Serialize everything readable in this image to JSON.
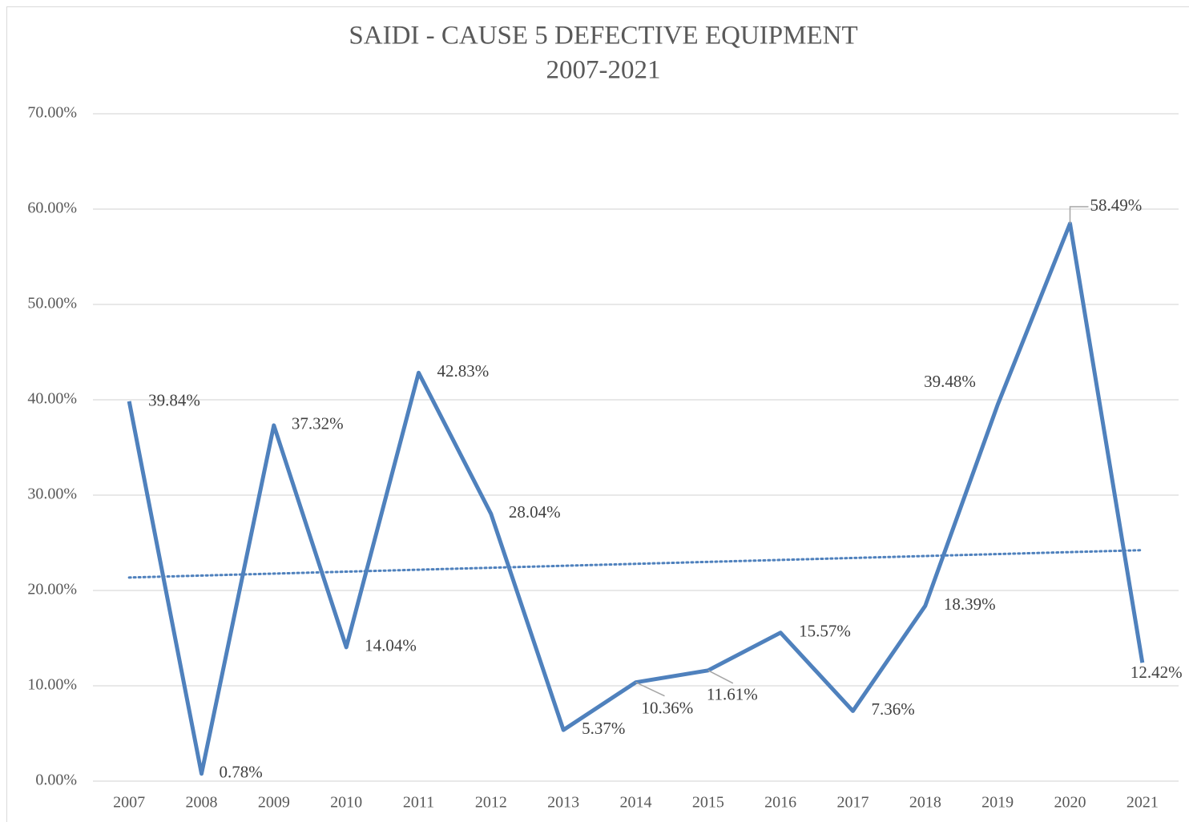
{
  "chart_data": {
    "type": "line",
    "title": "SAIDI - CAUSE 5 DEFECTIVE EQUIPMENT",
    "subtitle": "2007-2021",
    "categories": [
      "2007",
      "2008",
      "2009",
      "2010",
      "2011",
      "2012",
      "2013",
      "2014",
      "2015",
      "2016",
      "2017",
      "2018",
      "2019",
      "2020",
      "2021"
    ],
    "series": [
      {
        "name": "SAIDI - Cause 5",
        "color": "#4f81bd",
        "values": [
          39.84,
          0.78,
          37.32,
          14.04,
          42.83,
          28.04,
          5.37,
          10.36,
          11.61,
          15.57,
          7.36,
          18.39,
          39.48,
          58.49,
          12.42
        ],
        "value_labels": [
          "39.84%",
          "0.78%",
          "37.32%",
          "14.04%",
          "42.83%",
          "28.04%",
          "5.37%",
          "10.36%",
          "11.61%",
          "15.57%",
          "7.36%",
          "18.39%",
          "39.48%",
          "58.49%",
          "12.42%"
        ]
      }
    ],
    "trendline": "linear",
    "ylim": [
      0,
      70
    ],
    "yticks": [
      {
        "value": 0,
        "label": "0.00%"
      },
      {
        "value": 10,
        "label": "10.00%"
      },
      {
        "value": 20,
        "label": "20.00%"
      },
      {
        "value": 30,
        "label": "30.00%"
      },
      {
        "value": 40,
        "label": "40.00%"
      },
      {
        "value": 50,
        "label": "50.00%"
      },
      {
        "value": 60,
        "label": "60.00%"
      },
      {
        "value": 70,
        "label": "70.00%"
      }
    ],
    "grid": true
  }
}
